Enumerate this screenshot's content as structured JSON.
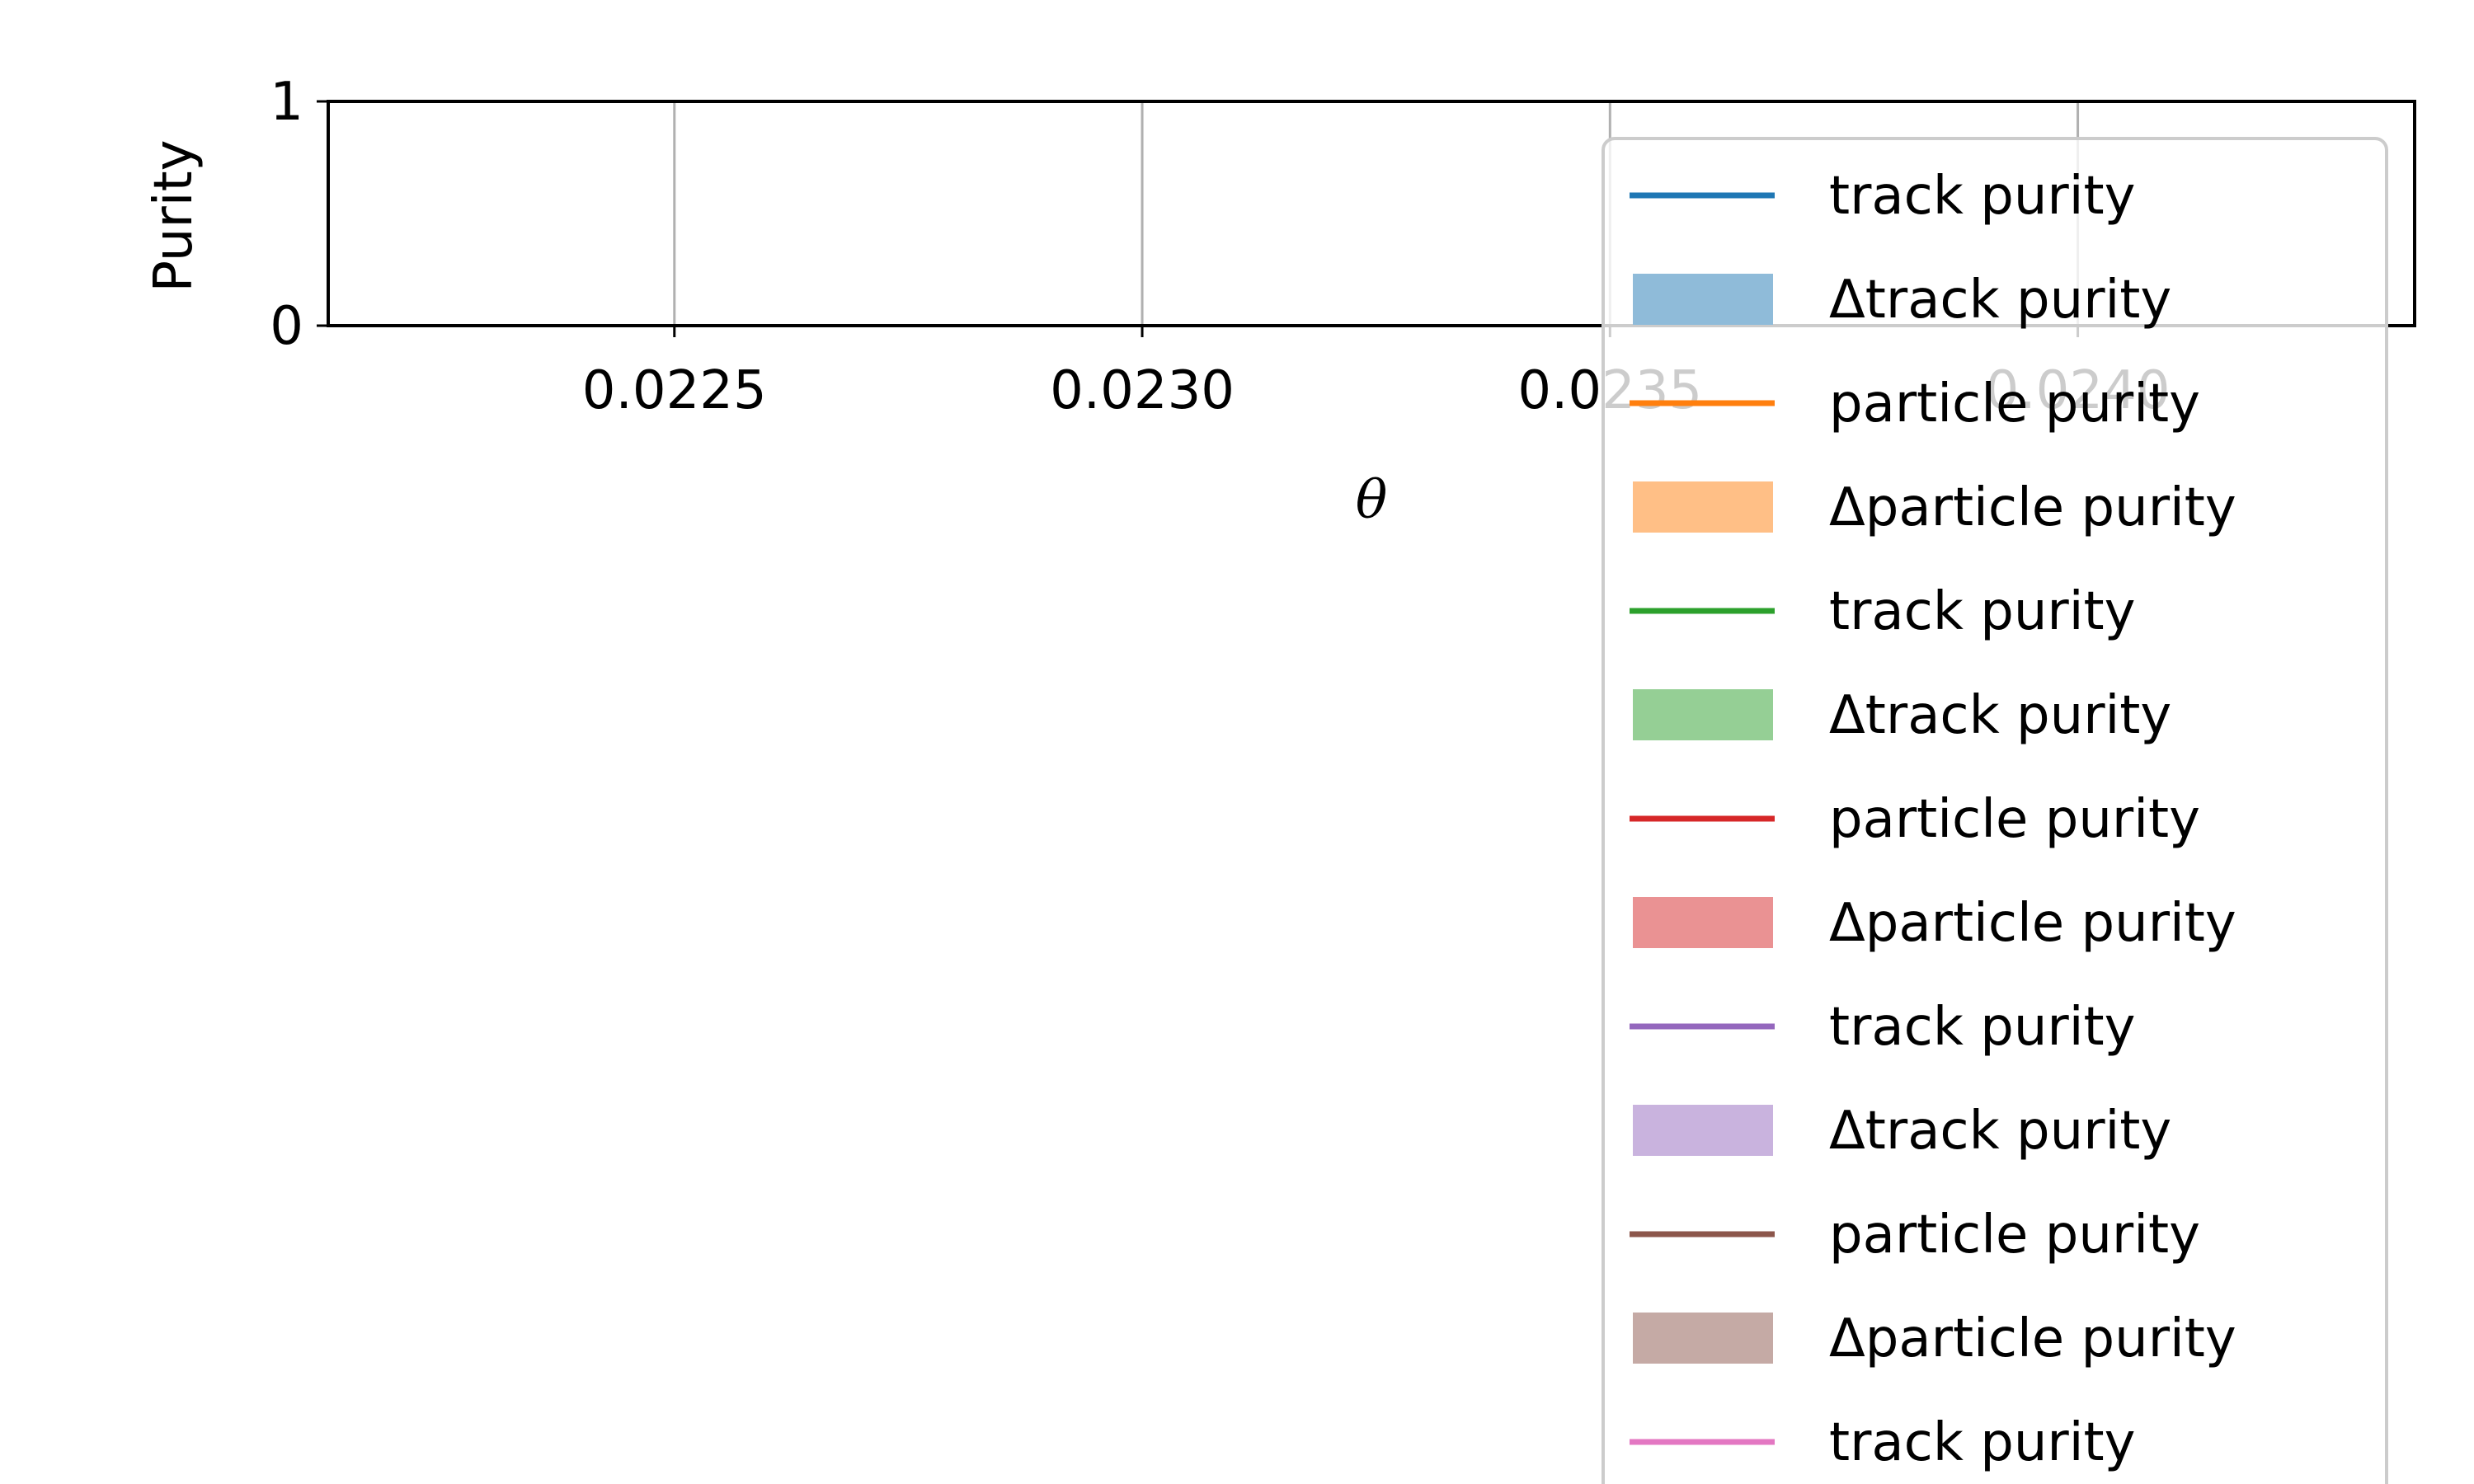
{
  "chart_data": {
    "type": "line",
    "title": "",
    "xlabel": "θ",
    "ylabel": "Purity",
    "xlim": [
      0.02213,
      0.02436
    ],
    "ylim": [
      0,
      1
    ],
    "x_ticks": [
      {
        "value": 0.0225,
        "label": "0.0225"
      },
      {
        "value": 0.023,
        "label": "0.0230"
      },
      {
        "value": 0.0235,
        "label": "0.0235"
      },
      {
        "value": 0.024,
        "label": "0.0240"
      }
    ],
    "y_ticks": [
      {
        "value": 0,
        "label": "0"
      },
      {
        "value": 1,
        "label": "1"
      }
    ],
    "grid": "x",
    "legend_placement": "upper-right, overflowing below the axes",
    "legend": [
      {
        "label": "track purity",
        "kind": "line",
        "color": "#1f77b4"
      },
      {
        "label": "Δtrack purity",
        "kind": "patch",
        "color": "#8fbbd9"
      },
      {
        "label": "particle purity",
        "kind": "line",
        "color": "#ff7f0e"
      },
      {
        "label": "Δparticle purity",
        "kind": "patch",
        "color": "#ffbf86"
      },
      {
        "label": "track purity",
        "kind": "line",
        "color": "#2ca02c"
      },
      {
        "label": "Δtrack purity",
        "kind": "patch",
        "color": "#95cf95"
      },
      {
        "label": "particle purity",
        "kind": "line",
        "color": "#d62728"
      },
      {
        "label": "Δparticle purity",
        "kind": "patch",
        "color": "#ea9293"
      },
      {
        "label": "track purity",
        "kind": "line",
        "color": "#9467bd"
      },
      {
        "label": "Δtrack purity",
        "kind": "patch",
        "color": "#c9b3de"
      },
      {
        "label": "particle purity",
        "kind": "line",
        "color": "#8c564b"
      },
      {
        "label": "Δparticle purity",
        "kind": "patch",
        "color": "#c5aaa5"
      },
      {
        "label": "track purity",
        "kind": "line",
        "color": "#e377c2"
      }
    ],
    "series": []
  }
}
